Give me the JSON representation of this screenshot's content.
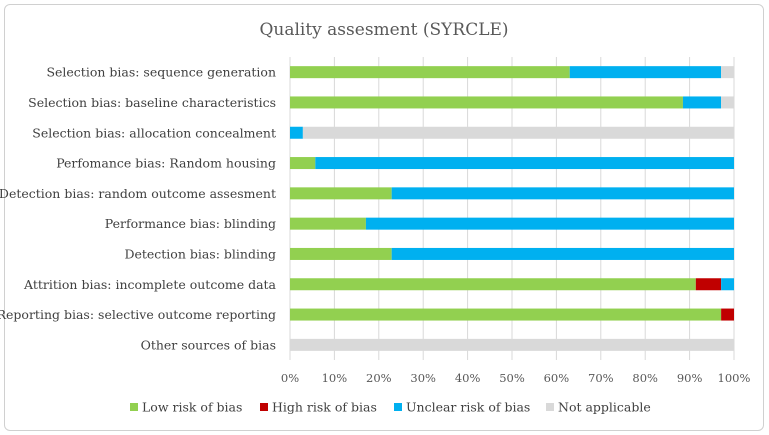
{
  "chart_data": {
    "type": "bar",
    "orientation": "horizontal",
    "stacked": true,
    "title": "Quality assesment (SYRCLE)",
    "xlabel": "",
    "ylabel": "",
    "xlim": [
      0,
      100
    ],
    "x_ticks": [
      "0%",
      "10%",
      "20%",
      "30%",
      "40%",
      "50%",
      "60%",
      "70%",
      "80%",
      "90%",
      "100%"
    ],
    "grid": "vertical",
    "legend_position": "bottom",
    "categories": [
      "Selection bias: sequence generation",
      "Selection bias: baseline characteristics",
      "Selection bias: allocation concealment",
      "Perfomance bias: Random housing",
      "Detection bias: random outcome assesment",
      "Performance bias: blinding",
      "Detection bias: blinding",
      "Attrition bias: incomplete outcome data",
      "Reporting bias: selective outcome reporting",
      "Other sources of bias"
    ],
    "series": [
      {
        "name": "Low risk of bias",
        "color": "#92d050",
        "values": [
          63,
          88.5,
          0,
          5.7,
          22.9,
          17.1,
          22.9,
          91.4,
          97.1,
          0
        ]
      },
      {
        "name": "High risk of bias",
        "color": "#c00000",
        "values": [
          0,
          0,
          0,
          0,
          0,
          0,
          0,
          5.7,
          2.9,
          0
        ]
      },
      {
        "name": "Unclear risk of bias",
        "color": "#00b0f0",
        "values": [
          34.1,
          8.6,
          2.9,
          94.3,
          77.1,
          82.9,
          77.1,
          2.9,
          0,
          0
        ]
      },
      {
        "name": "Not applicable",
        "color": "#d9d9d9",
        "values": [
          2.9,
          2.9,
          97.1,
          0,
          0,
          0,
          0,
          0,
          0,
          100
        ]
      }
    ]
  }
}
